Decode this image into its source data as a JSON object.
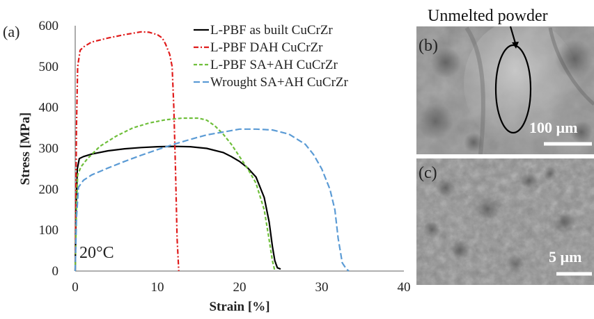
{
  "panel_a_label": "(a)",
  "temperature_label": "20°C",
  "chart_data": {
    "type": "line",
    "xlabel": "Strain [%]",
    "ylabel": "Stress [MPa]",
    "xlim": [
      0,
      40
    ],
    "ylim": [
      0,
      600
    ],
    "xticks": [
      0,
      10,
      20,
      30,
      40
    ],
    "yticks": [
      0,
      100,
      200,
      300,
      400,
      500,
      600
    ],
    "grid": false,
    "legend_position": "top-right",
    "series": [
      {
        "name": "L-PBF as built CuCrZr",
        "color": "#000000",
        "dash": "solid",
        "x": [
          0,
          0.1,
          0.25,
          0.5,
          1,
          2,
          4,
          6,
          8,
          10,
          12,
          14,
          16,
          18,
          19,
          20,
          21,
          22,
          23,
          23.6,
          24,
          24.3,
          24.6,
          25
        ],
        "y": [
          0,
          150,
          250,
          275,
          280,
          286,
          294,
          299,
          302,
          304,
          305,
          304,
          300,
          290,
          280,
          268,
          252,
          230,
          180,
          120,
          60,
          25,
          8,
          5
        ]
      },
      {
        "name": "L-PBF DAH CuCrZr",
        "color": "#e01b1b",
        "dash": "dashdot",
        "x": [
          0,
          0.15,
          0.3,
          0.6,
          1,
          2,
          4,
          6,
          8,
          9,
          10,
          10.6,
          11,
          11.5,
          11.8,
          12,
          12.2,
          12.4,
          12.6
        ],
        "y": [
          0,
          350,
          500,
          540,
          548,
          560,
          570,
          578,
          585,
          584,
          578,
          570,
          555,
          530,
          500,
          400,
          250,
          80,
          0
        ]
      },
      {
        "name": "L-PBF SA+AH CuCrZr",
        "color": "#6fbf3b",
        "dash": "dashed",
        "x": [
          0,
          0.15,
          0.3,
          0.7,
          1.5,
          3,
          5,
          7,
          9,
          11,
          13,
          15,
          16,
          17,
          18,
          19,
          20,
          21,
          22,
          23,
          23.5,
          24,
          24.3
        ],
        "y": [
          0,
          150,
          235,
          255,
          275,
          305,
          330,
          350,
          362,
          370,
          374,
          374,
          369,
          355,
          335,
          310,
          280,
          250,
          215,
          150,
          90,
          25,
          0
        ]
      },
      {
        "name": "Wrought SA+AH CuCrZr",
        "color": "#5b9bd5",
        "dash": "longdash",
        "x": [
          0,
          0.15,
          0.4,
          1,
          2,
          4,
          6,
          8,
          10,
          12,
          14,
          16,
          18,
          20,
          22,
          24,
          26,
          28,
          29,
          30,
          31,
          31.6,
          32,
          32.5,
          33,
          33.3
        ],
        "y": [
          0,
          130,
          205,
          222,
          235,
          252,
          268,
          283,
          297,
          310,
          322,
          333,
          340,
          347,
          347,
          345,
          335,
          310,
          285,
          250,
          200,
          150,
          80,
          20,
          5,
          0
        ]
      }
    ]
  },
  "micrographs": [
    {
      "panel": "(b)",
      "annotation": "Unmelted powder",
      "scale_bar": "100 µm"
    },
    {
      "panel": "(c)",
      "scale_bar": "5 µm"
    }
  ]
}
